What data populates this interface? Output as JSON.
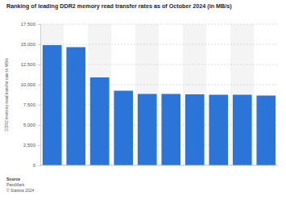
{
  "chart_data": {
    "type": "bar",
    "title": "Ranking of leading DDR2 memory read transfer rates as of October 2024 (in MB/s)",
    "y_label": "DDR2 memory read transfer rate in MB/s",
    "categories": [
      null,
      null,
      null,
      null,
      null,
      null,
      null,
      null,
      null,
      null
    ],
    "values": [
      14900,
      14650,
      10900,
      9250,
      8850,
      8850,
      8800,
      8750,
      8750,
      8650
    ],
    "color": "#2b75d9",
    "ylim": [
      0,
      17500
    ],
    "yticks": [
      0,
      {
        "value": 2500,
        "label": "2,500"
      },
      {
        "value": 5000,
        "label": "5,000"
      },
      {
        "value": 7500,
        "label": "7,500"
      },
      {
        "value": 10000,
        "label": "10,000"
      },
      {
        "value": 12500,
        "label": "12,500"
      },
      {
        "value": 15000,
        "label": "15,000"
      },
      {
        "value": 17500,
        "label": "17,500"
      }
    ],
    "grid": true,
    "source_label": "Source",
    "source": "PassMark",
    "copyright": "© Statista 2024"
  }
}
